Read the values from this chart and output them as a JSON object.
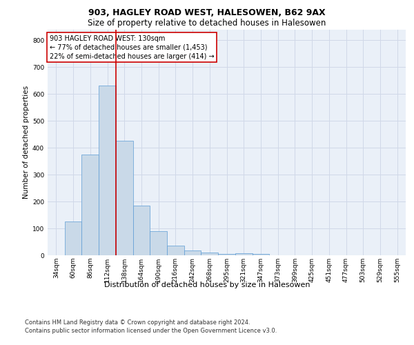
{
  "title1": "903, HAGLEY ROAD WEST, HALESOWEN, B62 9AX",
  "title2": "Size of property relative to detached houses in Halesowen",
  "xlabel": "Distribution of detached houses by size in Halesowen",
  "ylabel": "Number of detached properties",
  "bar_labels": [
    "34sqm",
    "60sqm",
    "86sqm",
    "112sqm",
    "138sqm",
    "164sqm",
    "190sqm",
    "216sqm",
    "242sqm",
    "268sqm",
    "295sqm",
    "321sqm",
    "347sqm",
    "373sqm",
    "399sqm",
    "425sqm",
    "451sqm",
    "477sqm",
    "503sqm",
    "529sqm",
    "555sqm"
  ],
  "bar_values": [
    0,
    125,
    375,
    630,
    425,
    185,
    90,
    35,
    17,
    10,
    5,
    7,
    5,
    0,
    0,
    0,
    0,
    0,
    0,
    0,
    0
  ],
  "bar_color": "#c9d9e8",
  "bar_edge_color": "#5b9bd5",
  "vline_color": "#cc0000",
  "vline_x_index": 4,
  "annotation_lines": [
    "903 HAGLEY ROAD WEST: 130sqm",
    "← 77% of detached houses are smaller (1,453)",
    "22% of semi-detached houses are larger (414) →"
  ],
  "annotation_box_color": "#ffffff",
  "annotation_box_edge_color": "#cc0000",
  "ylim": [
    0,
    840
  ],
  "yticks": [
    0,
    100,
    200,
    300,
    400,
    500,
    600,
    700,
    800
  ],
  "grid_color": "#d0d8e8",
  "background_color": "#eaf0f8",
  "footer": "Contains HM Land Registry data © Crown copyright and database right 2024.\nContains public sector information licensed under the Open Government Licence v3.0.",
  "title1_fontsize": 9,
  "title2_fontsize": 8.5,
  "ylabel_fontsize": 7.5,
  "xlabel_fontsize": 8,
  "tick_fontsize": 6.5,
  "annotation_fontsize": 7,
  "footer_fontsize": 6
}
